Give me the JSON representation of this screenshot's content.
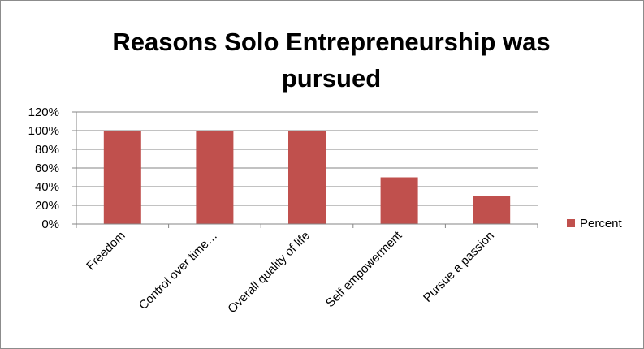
{
  "chart_data": {
    "type": "bar",
    "title_lines": [
      "Reasons Solo Entrepreneurship was",
      "pursued"
    ],
    "categories": [
      "Freedom",
      "Control over time…",
      "Overall quality of life",
      "Self empowerment",
      "Pursue a passion"
    ],
    "series": [
      {
        "name": "Percent",
        "values": [
          100,
          100,
          100,
          50,
          30
        ],
        "color": "#c0504d"
      }
    ],
    "y_ticks": [
      "0%",
      "20%",
      "40%",
      "60%",
      "80%",
      "100%",
      "120%"
    ],
    "ylim": [
      0,
      120
    ],
    "y_unit": "percent",
    "grid": true,
    "gridline_color": "#868686",
    "axis_color": "#868686",
    "legend_position": "right",
    "xlabel": "",
    "ylabel": ""
  }
}
